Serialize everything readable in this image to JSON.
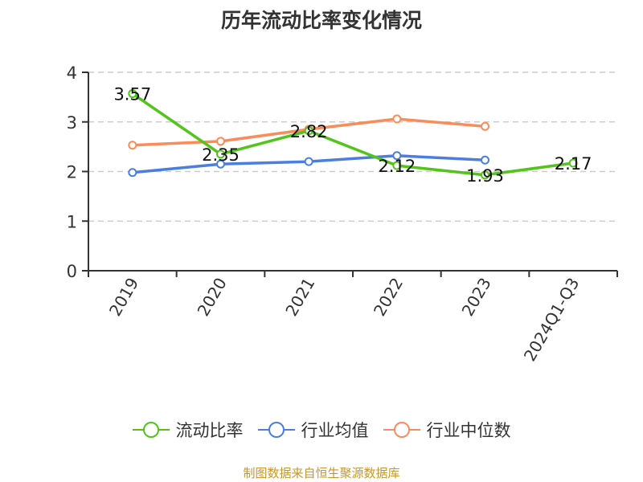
{
  "chart_data": {
    "type": "line",
    "title": "历年流动比率变化情况",
    "xlabel": "",
    "ylabel": "",
    "categories": [
      "2019",
      "2020",
      "2021",
      "2022",
      "2023",
      "2024Q1-Q3"
    ],
    "ylim": [
      0,
      4
    ],
    "yticks": [
      0,
      1,
      2,
      3,
      4
    ],
    "grid": true,
    "legend_position": "bottom",
    "series": [
      {
        "name": "流动比率",
        "color": "#52c41a",
        "values": [
          3.57,
          2.35,
          2.82,
          2.12,
          1.93,
          2.17
        ],
        "labels": [
          "3.57",
          "2.35",
          "2.82",
          "2.12",
          "1.93",
          "2.17"
        ]
      },
      {
        "name": "行业均值",
        "color": "#4a7fe0",
        "values": [
          1.98,
          2.15,
          2.2,
          2.32,
          2.23,
          null
        ]
      },
      {
        "name": "行业中位数",
        "color": "#fa8c5a",
        "values": [
          2.53,
          2.61,
          2.85,
          3.06,
          2.91,
          null
        ]
      }
    ]
  },
  "header": {
    "title": "历年流动比率变化情况"
  },
  "legend": {
    "items": [
      "流动比率",
      "行业均值",
      "行业中位数"
    ]
  },
  "footer": {
    "source": "制图数据来自恒生聚源数据库"
  }
}
